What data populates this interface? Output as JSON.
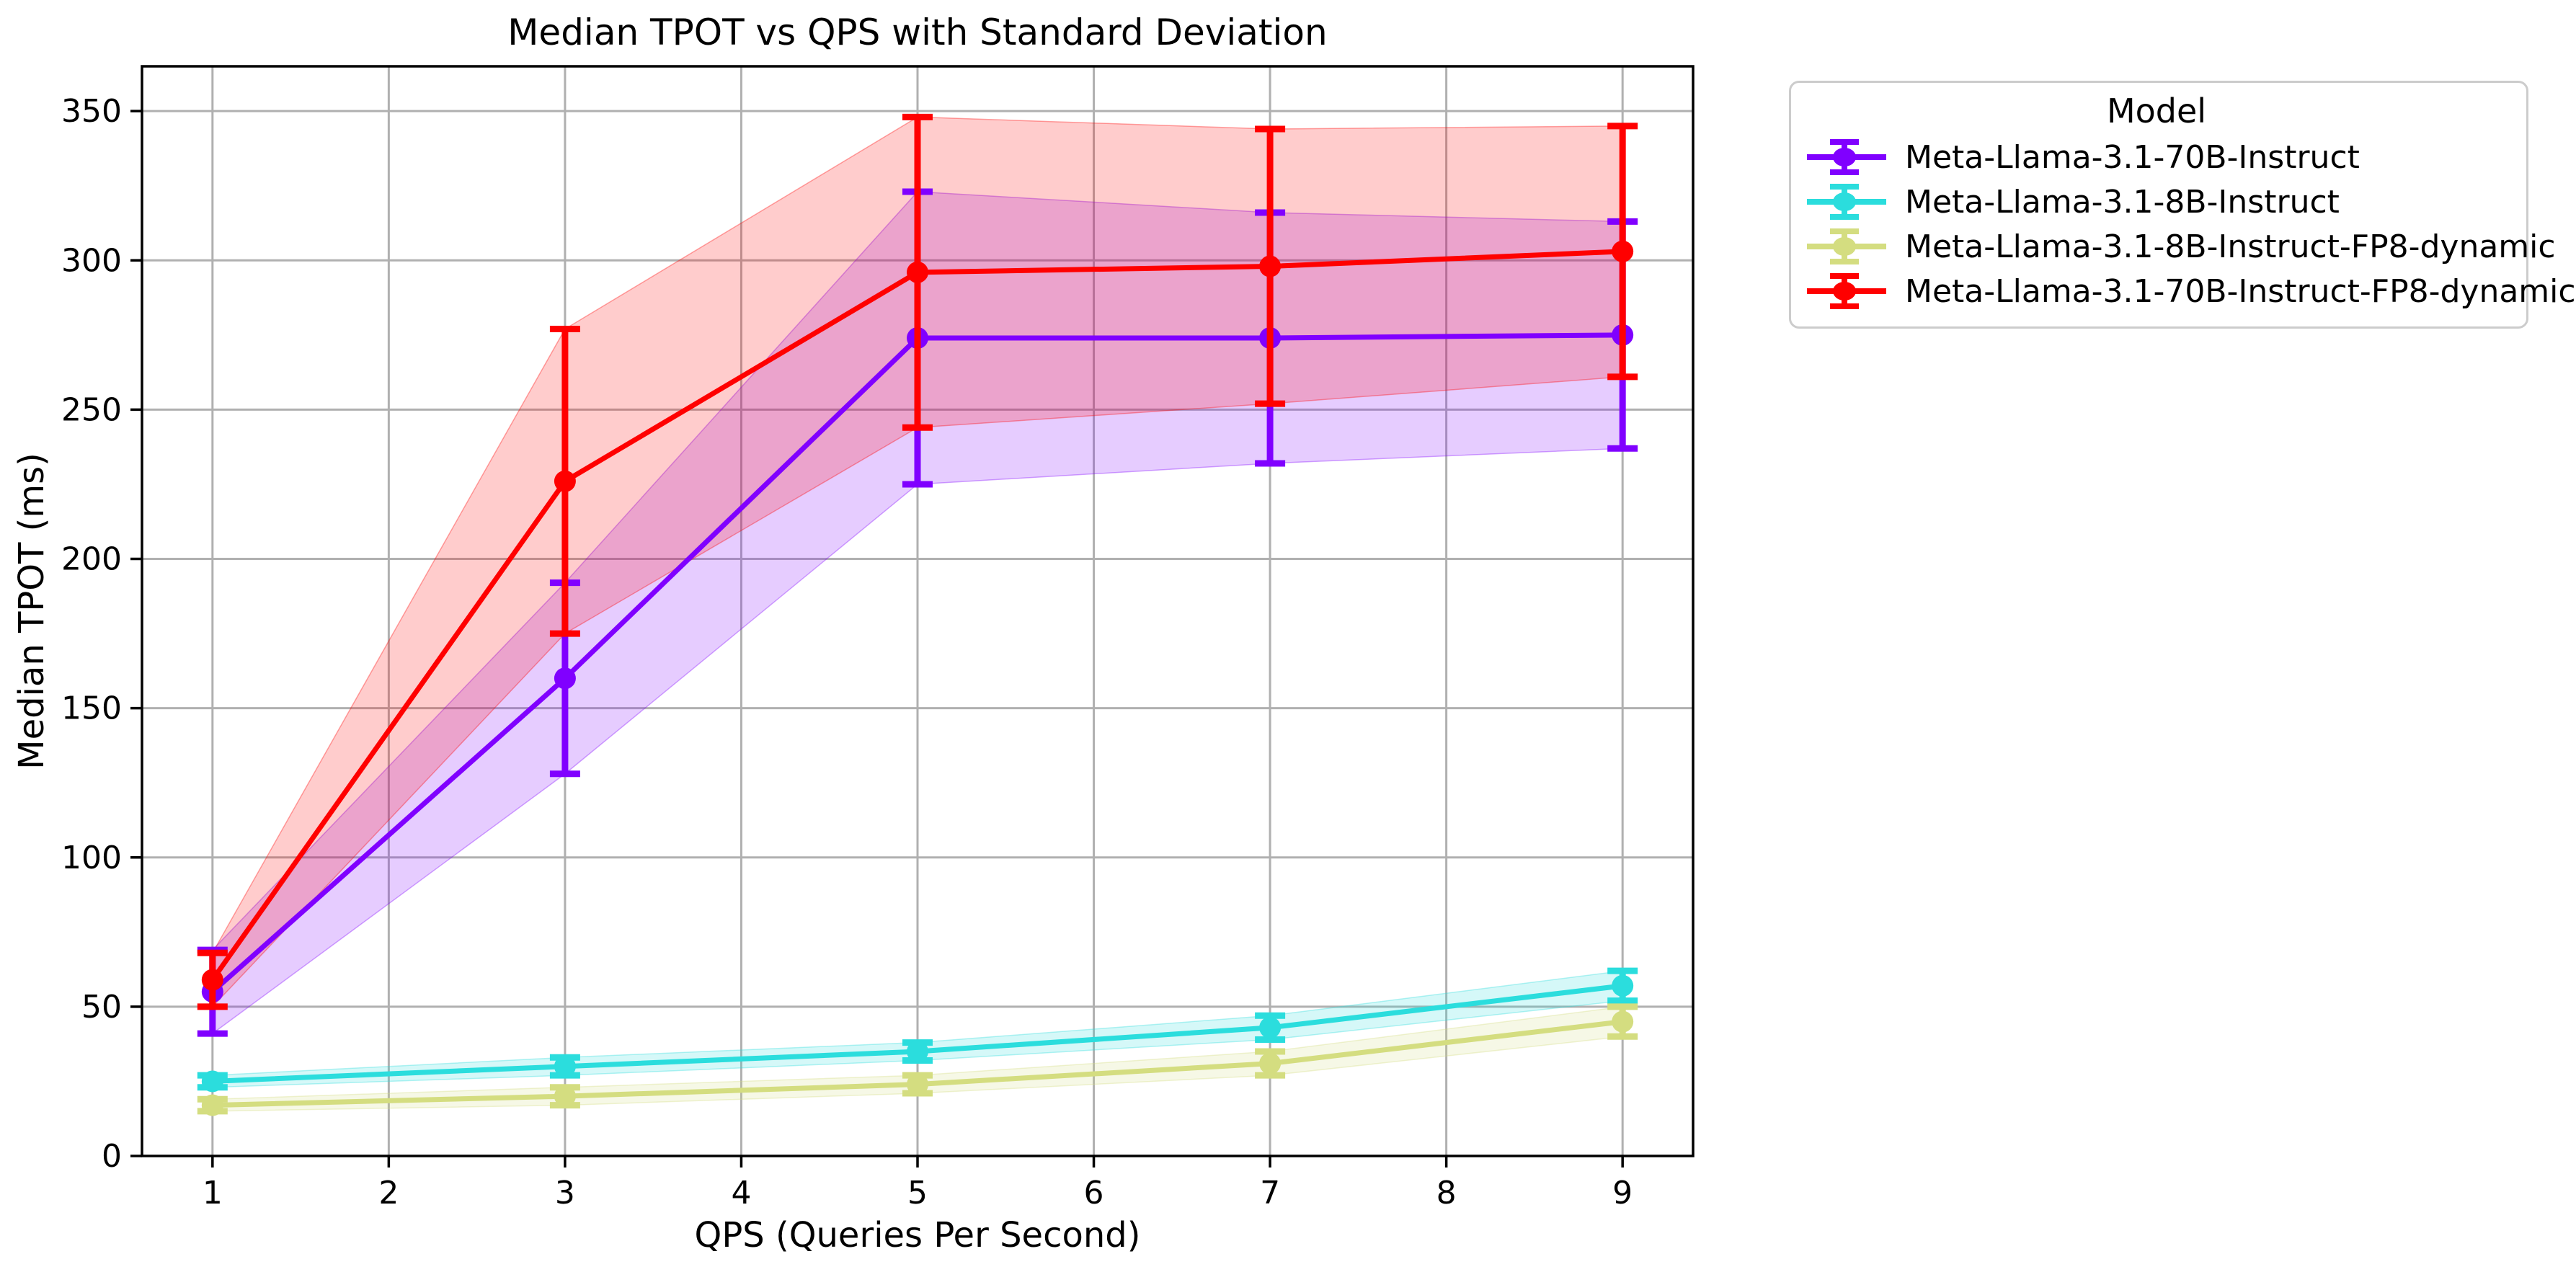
{
  "figure": {
    "background": "#ffffff",
    "grid_color": "#b0b0b0",
    "spine_color": "#000000",
    "legend_border_color": "#cccccc"
  },
  "chart_data": {
    "type": "line",
    "title": "Median TPOT vs QPS with Standard Deviation",
    "xlabel": "QPS (Queries Per Second)",
    "ylabel": "Median TPOT (ms)",
    "x": [
      1,
      3,
      5,
      7,
      9
    ],
    "xticks": [
      1,
      2,
      3,
      4,
      5,
      6,
      7,
      8,
      9
    ],
    "yticks": [
      0,
      50,
      100,
      150,
      200,
      250,
      300,
      350
    ],
    "xlim": [
      0.6,
      9.4
    ],
    "ylim": [
      0,
      365
    ],
    "grid": true,
    "legend_title": "Model",
    "legend_position": "outside-top-right",
    "error_style": "bars-with-caps-and-band",
    "band_opacity": 0.2,
    "series": [
      {
        "name": "Meta-Llama-3.1-70B-Instruct",
        "color": "#8000FF",
        "values": [
          55,
          160,
          274,
          274,
          275
        ],
        "std": [
          14,
          32,
          49,
          42,
          38
        ]
      },
      {
        "name": "Meta-Llama-3.1-8B-Instruct",
        "color": "#2BDDDD",
        "values": [
          25,
          30,
          35,
          43,
          57
        ],
        "std": [
          2,
          3,
          3,
          4,
          5
        ]
      },
      {
        "name": "Meta-Llama-3.1-8B-Instruct-FP8-dynamic",
        "color": "#D4DD80",
        "values": [
          17,
          20,
          24,
          31,
          45
        ],
        "std": [
          2,
          3,
          3,
          4,
          5
        ]
      },
      {
        "name": "Meta-Llama-3.1-70B-Instruct-FP8-dynamic",
        "color": "#FF0000",
        "values": [
          59,
          226,
          296,
          298,
          303
        ],
        "std": [
          9,
          51,
          52,
          46,
          42
        ]
      }
    ]
  }
}
